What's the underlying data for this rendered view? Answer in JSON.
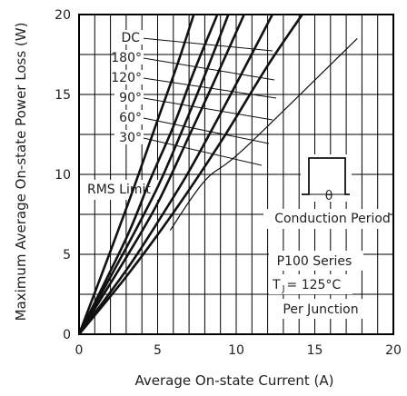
{
  "chart_data": {
    "type": "line",
    "xlabel": "Average On-state Current (A)",
    "ylabel": "Maximum Average On-state Power Loss (W)",
    "xlim": [
      0,
      20
    ],
    "ylim": [
      0,
      20
    ],
    "xticks": [
      0,
      5,
      10,
      15,
      20
    ],
    "yticks": [
      0,
      5,
      10,
      15,
      20
    ],
    "grid": true,
    "series": [
      {
        "name": "DC",
        "points": [
          [
            0,
            0
          ],
          [
            3,
            3.6
          ],
          [
            6,
            7.6
          ],
          [
            9,
            12.0
          ],
          [
            12,
            16.8
          ],
          [
            14.2,
            20
          ]
        ]
      },
      {
        "name": "180°",
        "points": [
          [
            0,
            0
          ],
          [
            3,
            4.0
          ],
          [
            5,
            7.0
          ],
          [
            7,
            10.2
          ],
          [
            9,
            13.8
          ],
          [
            10.5,
            16.6
          ],
          [
            12.3,
            20
          ]
        ]
      },
      {
        "name": "120°",
        "points": [
          [
            0,
            0
          ],
          [
            3,
            4.8
          ],
          [
            5,
            8.2
          ],
          [
            7,
            12.4
          ],
          [
            8.5,
            15.6
          ],
          [
            10.5,
            20
          ]
        ]
      },
      {
        "name": "90°",
        "points": [
          [
            0,
            0
          ],
          [
            3,
            5.4
          ],
          [
            5,
            9.2
          ],
          [
            6.5,
            12.6
          ],
          [
            8,
            16.2
          ],
          [
            9.5,
            20
          ]
        ]
      },
      {
        "name": "60°",
        "points": [
          [
            0,
            0
          ],
          [
            3,
            6.0
          ],
          [
            4.5,
            9.6
          ],
          [
            6,
            13.0
          ],
          [
            7.3,
            16.4
          ],
          [
            8.8,
            20
          ]
        ]
      },
      {
        "name": "30°",
        "points": [
          [
            0,
            0
          ],
          [
            2,
            5.2
          ],
          [
            3.5,
            9.2
          ],
          [
            5,
            13.4
          ],
          [
            6.3,
            17.0
          ],
          [
            7.3,
            20
          ]
        ]
      }
    ],
    "rms_limit": {
      "label": "RMS Limit",
      "points": [
        [
          5.8,
          6.5
        ],
        [
          8,
          9.6
        ],
        [
          10.5,
          11.6
        ],
        [
          17.7,
          18.5
        ]
      ]
    },
    "annotations": {
      "conduction_period": "Conduction Period",
      "theta_symbol": "θ",
      "series_name": "P100 Series",
      "tj_prefix": "T",
      "tj_sub": "J",
      "tj_suffix": "= 125°C",
      "per_junction": "Per Junction"
    },
    "colors": {
      "line": "#111111",
      "grid": "#000000",
      "highlight": "#666666"
    }
  }
}
